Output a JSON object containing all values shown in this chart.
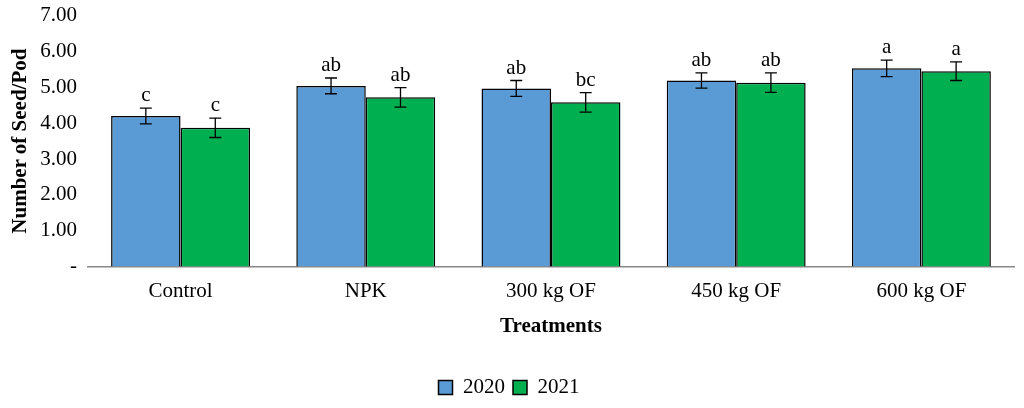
{
  "chart_data": {
    "type": "bar",
    "xlabel": "Treatments",
    "ylabel": "Number of Seed/Pod",
    "categories": [
      "Control",
      "NPK",
      "300 kg OF",
      "450 kg OF",
      "600 kg OF"
    ],
    "series": [
      {
        "name": "2020",
        "color": "#5b9bd5",
        "values": [
          4.2,
          5.04,
          4.97,
          5.19,
          5.53
        ],
        "errors": [
          0.22,
          0.22,
          0.22,
          0.21,
          0.23
        ],
        "value_labels": [
          "c",
          "ab",
          "ab",
          "ab",
          "a"
        ]
      },
      {
        "name": "2021",
        "color": "#00b050",
        "values": [
          3.87,
          4.72,
          4.58,
          5.13,
          5.45
        ],
        "errors": [
          0.27,
          0.27,
          0.27,
          0.27,
          0.26
        ],
        "value_labels": [
          "c",
          "ab",
          "bc",
          "ab",
          "a"
        ]
      }
    ],
    "ylim": [
      0,
      7
    ],
    "yticks": [
      {
        "value": 0,
        "label": "-"
      },
      {
        "value": 1,
        "label": "1.00"
      },
      {
        "value": 2,
        "label": "2.00"
      },
      {
        "value": 3,
        "label": "3.00"
      },
      {
        "value": 4,
        "label": "4.00"
      },
      {
        "value": 5,
        "label": "5.00"
      },
      {
        "value": 6,
        "label": "6.00"
      },
      {
        "value": 7,
        "label": "7.00"
      }
    ],
    "grid": false,
    "legend": "bottom"
  }
}
